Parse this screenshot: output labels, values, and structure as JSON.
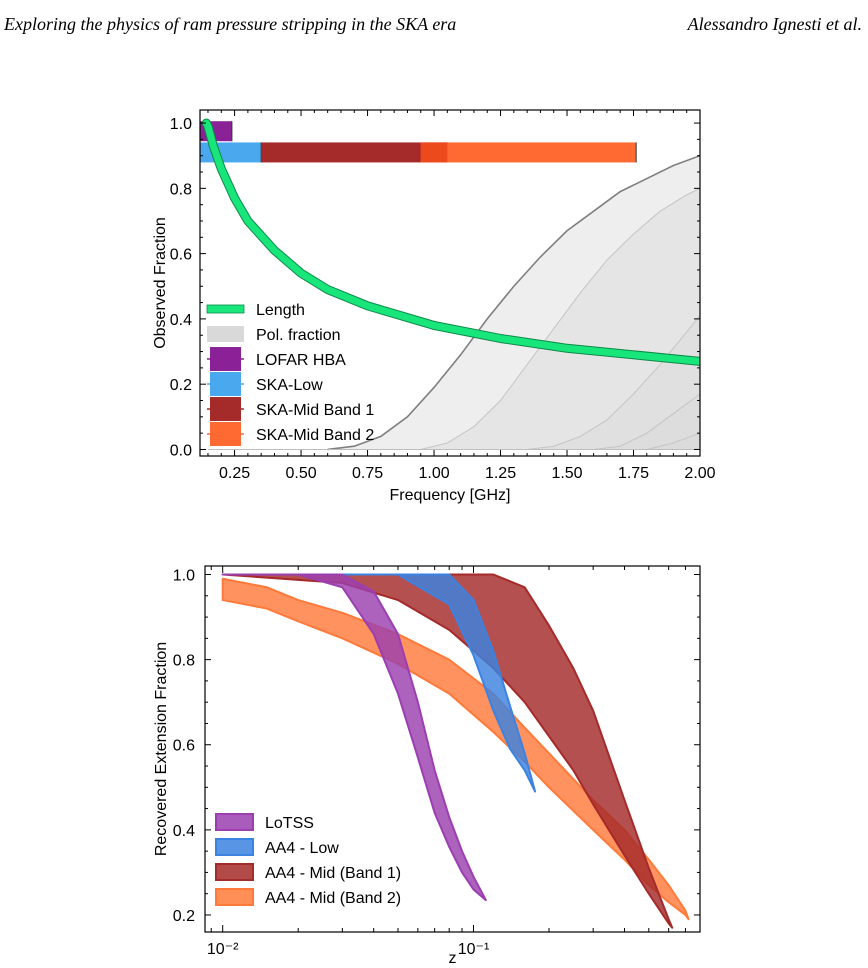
{
  "header": {
    "title": "Exploring the physics of ram pressure stripping in the SKA era",
    "author": "Alessandro Ignesti et al."
  },
  "chart_data": [
    {
      "type": "line",
      "xlabel": "Frequency [GHz]",
      "ylabel": "Observed Fraction",
      "xlim": [
        0.12,
        2.0
      ],
      "ylim": [
        -0.02,
        1.04
      ],
      "x_ticks": [
        0.25,
        0.5,
        0.75,
        1.0,
        1.25,
        1.5,
        1.75,
        2.0
      ],
      "x_tick_labels": [
        "0.25",
        "0.50",
        "0.75",
        "1.00",
        "1.25",
        "1.50",
        "1.75",
        "2.00"
      ],
      "y_ticks": [
        0.0,
        0.2,
        0.4,
        0.6,
        0.8,
        1.0
      ],
      "y_tick_labels": [
        "0.0",
        "0.2",
        "0.4",
        "0.6",
        "0.8",
        "1.0"
      ],
      "grid": false,
      "legend_position": "lower-left",
      "length_curve": {
        "name": "Length",
        "color": "#19e67a",
        "x": [
          0.144,
          0.15,
          0.17,
          0.2,
          0.25,
          0.3,
          0.4,
          0.5,
          0.6,
          0.75,
          1.0,
          1.25,
          1.5,
          1.75,
          2.0
        ],
        "y": [
          1.0,
          0.99,
          0.93,
          0.86,
          0.77,
          0.7,
          0.61,
          0.54,
          0.49,
          0.44,
          0.38,
          0.34,
          0.31,
          0.29,
          0.27
        ]
      },
      "pol_fraction": {
        "name": "Pol. fraction",
        "color": "#d9d9d9",
        "curves": [
          {
            "x": [
              0.6,
              0.7,
              0.8,
              0.9,
              1.0,
              1.1,
              1.2,
              1.3,
              1.4,
              1.5,
              1.6,
              1.7,
              1.8,
              1.9,
              2.0
            ],
            "y": [
              0.0,
              0.01,
              0.04,
              0.1,
              0.19,
              0.29,
              0.4,
              0.5,
              0.59,
              0.67,
              0.73,
              0.79,
              0.83,
              0.87,
              0.9
            ]
          },
          {
            "x": [
              0.95,
              1.05,
              1.15,
              1.25,
              1.35,
              1.45,
              1.55,
              1.65,
              1.75,
              1.85,
              1.95,
              2.0
            ],
            "y": [
              0.0,
              0.02,
              0.07,
              0.15,
              0.26,
              0.37,
              0.48,
              0.58,
              0.66,
              0.73,
              0.78,
              0.8
            ]
          },
          {
            "x": [
              1.35,
              1.45,
              1.55,
              1.65,
              1.75,
              1.85,
              1.95,
              2.0
            ],
            "y": [
              0.0,
              0.01,
              0.04,
              0.09,
              0.17,
              0.26,
              0.36,
              0.41
            ]
          },
          {
            "x": [
              1.6,
              1.7,
              1.8,
              1.9,
              2.0
            ],
            "y": [
              0.0,
              0.01,
              0.05,
              0.11,
              0.17
            ]
          },
          {
            "x": [
              1.8,
              1.9,
              2.0
            ],
            "y": [
              0.0,
              0.02,
              0.05
            ]
          }
        ]
      },
      "bands": [
        {
          "name": "LOFAR HBA",
          "color": "#8b2197",
          "y": 0.975,
          "segments": [
            [
              0.12,
              0.24
            ]
          ]
        },
        {
          "name": "SKA-Low",
          "color": "#4aa8ef",
          "y": 0.91,
          "segments": [
            [
              0.12,
              0.35
            ]
          ]
        },
        {
          "name": "SKA-Mid Band 1",
          "color": "#a52a2a",
          "y": 0.91,
          "segments": [
            [
              0.35,
              1.05
            ]
          ]
        },
        {
          "name": "SKA-Mid Band 2",
          "color": "#ff6a33",
          "y": 0.91,
          "segments": [
            [
              0.95,
              1.76
            ]
          ]
        }
      ],
      "overlap_color": "#ec4a1d"
    },
    {
      "type": "area",
      "xlabel": "z",
      "ylabel": "Recovered Extension Fraction",
      "x_scale": "log",
      "xlim": [
        0.0085,
        0.8
      ],
      "ylim": [
        0.16,
        1.02
      ],
      "x_ticks": [
        0.01,
        0.1
      ],
      "x_tick_labels": [
        "10⁻²",
        "10⁻¹"
      ],
      "y_ticks": [
        0.2,
        0.4,
        0.6,
        0.8,
        1.0
      ],
      "y_tick_labels": [
        "0.2",
        "0.4",
        "0.6",
        "0.8",
        "1.0"
      ],
      "grid": false,
      "legend_position": "lower-left",
      "series": [
        {
          "name": "LoTSS",
          "color": "#9b3fb0",
          "x": [
            0.01,
            0.02,
            0.03,
            0.04,
            0.05,
            0.06,
            0.07,
            0.08,
            0.09,
            0.1,
            0.112
          ],
          "upper": [
            1.0,
            1.0,
            1.0,
            0.96,
            0.86,
            0.7,
            0.54,
            0.43,
            0.35,
            0.29,
            0.235
          ],
          "lower": [
            1.0,
            1.0,
            0.97,
            0.86,
            0.72,
            0.57,
            0.44,
            0.36,
            0.3,
            0.26,
            0.235
          ]
        },
        {
          "name": "AA4 - Low",
          "color": "#3c82e0",
          "x": [
            0.01,
            0.05,
            0.08,
            0.1,
            0.12,
            0.14,
            0.16,
            0.176
          ],
          "upper": [
            1.0,
            1.0,
            1.0,
            0.94,
            0.82,
            0.69,
            0.58,
            0.49
          ],
          "lower": [
            1.0,
            1.0,
            0.93,
            0.81,
            0.68,
            0.59,
            0.54,
            0.49
          ]
        },
        {
          "name": "AA4 - Mid (Band 1)",
          "color": "#a52a2a",
          "x": [
            0.01,
            0.03,
            0.05,
            0.08,
            0.12,
            0.16,
            0.2,
            0.25,
            0.3,
            0.4,
            0.5,
            0.6,
            0.62
          ],
          "upper": [
            1.0,
            1.0,
            1.0,
            1.0,
            1.0,
            0.97,
            0.88,
            0.78,
            0.68,
            0.47,
            0.31,
            0.19,
            0.17
          ],
          "lower": [
            1.0,
            0.98,
            0.94,
            0.87,
            0.78,
            0.7,
            0.62,
            0.54,
            0.46,
            0.34,
            0.25,
            0.18,
            0.17
          ]
        },
        {
          "name": "AA4 - Mid (Band 2)",
          "color": "#ff7a3a",
          "x": [
            0.01,
            0.015,
            0.02,
            0.03,
            0.05,
            0.08,
            0.12,
            0.16,
            0.2,
            0.3,
            0.4,
            0.5,
            0.6,
            0.7,
            0.72
          ],
          "upper": [
            0.99,
            0.97,
            0.94,
            0.91,
            0.86,
            0.8,
            0.72,
            0.64,
            0.58,
            0.47,
            0.4,
            0.33,
            0.27,
            0.21,
            0.19
          ],
          "lower": [
            0.94,
            0.92,
            0.89,
            0.85,
            0.79,
            0.72,
            0.63,
            0.56,
            0.5,
            0.4,
            0.33,
            0.27,
            0.23,
            0.2,
            0.19
          ]
        }
      ]
    }
  ]
}
